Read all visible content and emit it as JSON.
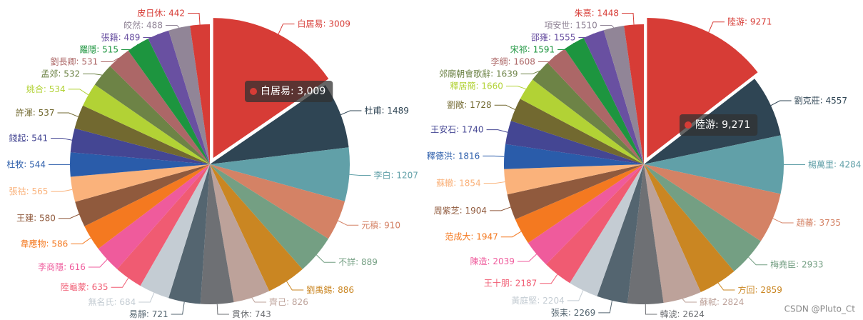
{
  "chart_data": [
    {
      "type": "pie",
      "tooltip": "白居易: 3,009",
      "categories": [
        "白居易",
        "杜甫",
        "李白",
        "元稹",
        "不詳",
        "劉禹錫",
        "齊己",
        "貫休",
        "易靜",
        "無名氏",
        "陸龜蒙",
        "李商隱",
        "韋應物",
        "王建",
        "張祜",
        "杜牧",
        "錢起",
        "許渾",
        "姚合",
        "孟郊",
        "劉長卿",
        "羅隱",
        "張籍",
        "皎然",
        "皮日休"
      ],
      "values": [
        3009,
        1489,
        1207,
        910,
        889,
        886,
        826,
        743,
        721,
        684,
        635,
        616,
        586,
        580,
        565,
        544,
        541,
        537,
        534,
        532,
        531,
        515,
        489,
        488,
        442
      ],
      "colors": [
        "#d73c36",
        "#2f4554",
        "#61a0a8",
        "#d48265",
        "#749f83",
        "#ca8622",
        "#bda29a",
        "#6e7074",
        "#546570",
        "#c4ccd3",
        "#f05b72",
        "#ef5b9c",
        "#f47920",
        "#905a3d",
        "#fab27b",
        "#2a5caa",
        "#444693",
        "#726930",
        "#b2d235",
        "#6d8346",
        "#ac6767",
        "#1d953f",
        "#6950a1",
        "#918597",
        "#d73c36"
      ]
    },
    {
      "type": "pie",
      "tooltip": "陸游: 9,271",
      "categories": [
        "陸游",
        "劉克莊",
        "楊萬里",
        "趙蕃",
        "梅堯臣",
        "方回",
        "蘇軾",
        "韓淲",
        "張耒",
        "黃庭堅",
        "王十朋",
        "陳造",
        "范成大",
        "周紫芝",
        "蘇轍",
        "釋德洪",
        "王安石",
        "劉敞",
        "釋居簡",
        "郊廟朝會歌辭",
        "李綱",
        "宋祁",
        "邵雍",
        "項安世",
        "朱熹"
      ],
      "values": [
        9271,
        4557,
        4284,
        3735,
        2933,
        2859,
        2824,
        2624,
        2269,
        2204,
        2187,
        2039,
        1947,
        1904,
        1854,
        1816,
        1740,
        1728,
        1660,
        1639,
        1608,
        1591,
        1555,
        1510,
        1448
      ],
      "colors": [
        "#d73c36",
        "#2f4554",
        "#61a0a8",
        "#d48265",
        "#749f83",
        "#ca8622",
        "#bda29a",
        "#6e7074",
        "#546570",
        "#c4ccd3",
        "#f05b72",
        "#ef5b9c",
        "#f47920",
        "#905a3d",
        "#fab27b",
        "#2a5caa",
        "#444693",
        "#726930",
        "#b2d235",
        "#6d8346",
        "#ac6767",
        "#1d953f",
        "#6950a1",
        "#918597",
        "#d73c36"
      ]
    }
  ],
  "watermark": "CSDN @Pluto_Ct"
}
